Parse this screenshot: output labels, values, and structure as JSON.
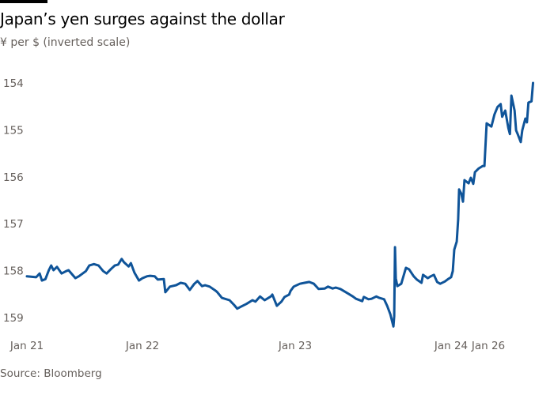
{
  "chart_data": {
    "type": "line",
    "title": "Japan’s yen surges against the dollar",
    "subtitle": "¥ per $ (inverted scale)",
    "source": "Source: Bloomberg",
    "xlabel": "",
    "ylabel": "",
    "y_inverted": true,
    "ylim": [
      154,
      159
    ],
    "y_ticks": [
      "154",
      "155",
      "156",
      "157",
      "158",
      "159"
    ],
    "x_ticks": [
      {
        "label": "Jan 21",
        "day": 21
      },
      {
        "label": "Jan 22",
        "day": 22
      },
      {
        "label": "Jan 23",
        "day": 23
      },
      {
        "label": "Jan 24",
        "day": 24
      },
      {
        "label": "Jan 26",
        "day": 26
      }
    ],
    "grid": false,
    "line_color": "#0f5499",
    "series": [
      {
        "points": [
          [
            21.0,
            158.12
          ],
          [
            21.08,
            158.14
          ],
          [
            21.11,
            158.06
          ],
          [
            21.13,
            158.21
          ],
          [
            21.16,
            158.18
          ],
          [
            21.19,
            157.99
          ],
          [
            21.21,
            157.89
          ],
          [
            21.23,
            157.99
          ],
          [
            21.26,
            157.92
          ],
          [
            21.3,
            158.06
          ],
          [
            21.34,
            158.01
          ],
          [
            21.36,
            157.99
          ],
          [
            21.42,
            158.16
          ],
          [
            21.45,
            158.12
          ],
          [
            21.51,
            158.01
          ],
          [
            21.54,
            157.89
          ],
          [
            21.58,
            157.86
          ],
          [
            21.62,
            157.89
          ],
          [
            21.66,
            158.01
          ],
          [
            21.69,
            158.06
          ],
          [
            21.73,
            157.96
          ],
          [
            21.76,
            157.89
          ],
          [
            21.79,
            157.87
          ],
          [
            21.82,
            157.75
          ],
          [
            21.84,
            157.82
          ],
          [
            21.88,
            157.91
          ],
          [
            21.9,
            157.84
          ],
          [
            21.93,
            158.04
          ],
          [
            21.97,
            158.21
          ],
          [
            22.0,
            158.16
          ],
          [
            22.03,
            158.12
          ],
          [
            22.05,
            158.11
          ],
          [
            22.08,
            158.12
          ],
          [
            22.1,
            158.19
          ],
          [
            22.14,
            158.18
          ],
          [
            22.15,
            158.46
          ],
          [
            22.18,
            158.34
          ],
          [
            22.22,
            158.31
          ],
          [
            22.25,
            158.26
          ],
          [
            22.28,
            158.28
          ],
          [
            22.31,
            158.41
          ],
          [
            22.34,
            158.28
          ],
          [
            22.36,
            158.22
          ],
          [
            22.39,
            158.33
          ],
          [
            22.41,
            158.31
          ],
          [
            22.44,
            158.34
          ],
          [
            22.48,
            158.43
          ],
          [
            22.49,
            158.46
          ],
          [
            22.52,
            158.58
          ],
          [
            22.57,
            158.63
          ],
          [
            22.6,
            158.73
          ],
          [
            22.62,
            158.81
          ],
          [
            22.65,
            158.76
          ],
          [
            22.68,
            158.71
          ],
          [
            22.72,
            158.63
          ],
          [
            22.74,
            158.66
          ],
          [
            22.77,
            158.55
          ],
          [
            22.8,
            158.63
          ],
          [
            22.84,
            158.55
          ],
          [
            22.85,
            158.51
          ],
          [
            22.88,
            158.75
          ],
          [
            22.91,
            158.66
          ],
          [
            22.93,
            158.56
          ],
          [
            22.96,
            158.51
          ],
          [
            22.97,
            158.43
          ],
          [
            22.99,
            158.34
          ],
          [
            23.03,
            158.28
          ],
          [
            23.06,
            158.26
          ],
          [
            23.09,
            158.24
          ],
          [
            23.12,
            158.28
          ],
          [
            23.15,
            158.39
          ],
          [
            23.19,
            158.38
          ],
          [
            23.21,
            158.34
          ],
          [
            23.24,
            158.38
          ],
          [
            23.26,
            158.36
          ],
          [
            23.29,
            158.39
          ],
          [
            23.34,
            158.49
          ],
          [
            23.37,
            158.55
          ],
          [
            23.39,
            158.6
          ],
          [
            23.43,
            158.65
          ],
          [
            23.44,
            158.56
          ],
          [
            23.47,
            158.61
          ],
          [
            23.49,
            158.6
          ],
          [
            23.52,
            158.55
          ],
          [
            23.54,
            158.58
          ],
          [
            23.57,
            158.61
          ],
          [
            23.59,
            158.75
          ],
          [
            23.61,
            158.93
          ],
          [
            23.63,
            159.19
          ],
          [
            23.635,
            158.97
          ],
          [
            23.64,
            157.5
          ],
          [
            23.645,
            158.16
          ],
          [
            23.655,
            158.33
          ],
          [
            23.68,
            158.28
          ],
          [
            23.71,
            157.94
          ],
          [
            23.73,
            157.97
          ],
          [
            23.76,
            158.12
          ],
          [
            23.78,
            158.19
          ],
          [
            23.81,
            158.26
          ],
          [
            23.82,
            158.09
          ],
          [
            23.85,
            158.16
          ],
          [
            23.87,
            158.12
          ],
          [
            23.89,
            158.09
          ],
          [
            23.91,
            158.24
          ],
          [
            23.93,
            158.28
          ],
          [
            23.96,
            158.23
          ],
          [
            23.98,
            158.18
          ],
          [
            24.0,
            158.14
          ],
          [
            24.09,
            158.01
          ],
          [
            24.17,
            157.55
          ],
          [
            24.3,
            157.38
          ],
          [
            24.38,
            156.91
          ],
          [
            24.43,
            156.27
          ],
          [
            24.55,
            156.36
          ],
          [
            24.64,
            156.53
          ],
          [
            24.72,
            156.07
          ],
          [
            24.94,
            156.14
          ],
          [
            25.06,
            156.02
          ],
          [
            25.19,
            156.15
          ],
          [
            25.28,
            155.9
          ],
          [
            25.49,
            155.82
          ],
          [
            25.7,
            155.77
          ],
          [
            25.79,
            155.77
          ],
          [
            25.91,
            154.86
          ],
          [
            26.02,
            154.93
          ],
          [
            26.04,
            154.67
          ],
          [
            26.06,
            154.51
          ],
          [
            26.08,
            154.45
          ],
          [
            26.09,
            154.72
          ],
          [
            26.11,
            154.59
          ],
          [
            26.13,
            154.96
          ],
          [
            26.14,
            155.09
          ],
          [
            26.15,
            154.27
          ],
          [
            26.17,
            154.59
          ],
          [
            26.18,
            155.01
          ],
          [
            26.19,
            155.09
          ],
          [
            26.21,
            155.26
          ],
          [
            26.22,
            155.01
          ],
          [
            26.24,
            154.76
          ],
          [
            26.25,
            154.84
          ],
          [
            26.26,
            154.42
          ],
          [
            26.28,
            154.39
          ],
          [
            26.29,
            154.0
          ]
        ]
      }
    ]
  }
}
